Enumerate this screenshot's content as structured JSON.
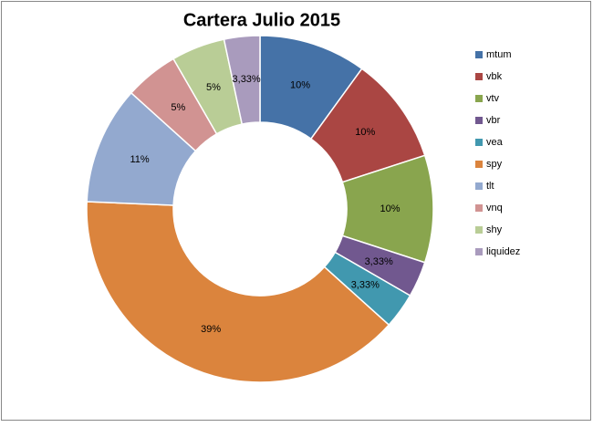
{
  "chart_data": {
    "type": "doughnut",
    "title": "Cartera Julio 2015",
    "categories": [
      "mtum",
      "vbk",
      "vtv",
      "vbr",
      "vea",
      "spy",
      "tlt",
      "vnq",
      "shy",
      "liquidez"
    ],
    "values": [
      10,
      10,
      10,
      3.33,
      3.33,
      39,
      11,
      5,
      5,
      3.33
    ],
    "value_labels": [
      "10%",
      "10%",
      "10%",
      "3,33%",
      "3,33%",
      "39%",
      "11%",
      "5%",
      "5%",
      "3,33%"
    ],
    "colors": [
      "#4572a7",
      "#aa4643",
      "#89a54e",
      "#71588f",
      "#4198af",
      "#db843d",
      "#93a9cf",
      "#d19392",
      "#b9cd96",
      "#a99bbd"
    ],
    "legend": "right"
  }
}
